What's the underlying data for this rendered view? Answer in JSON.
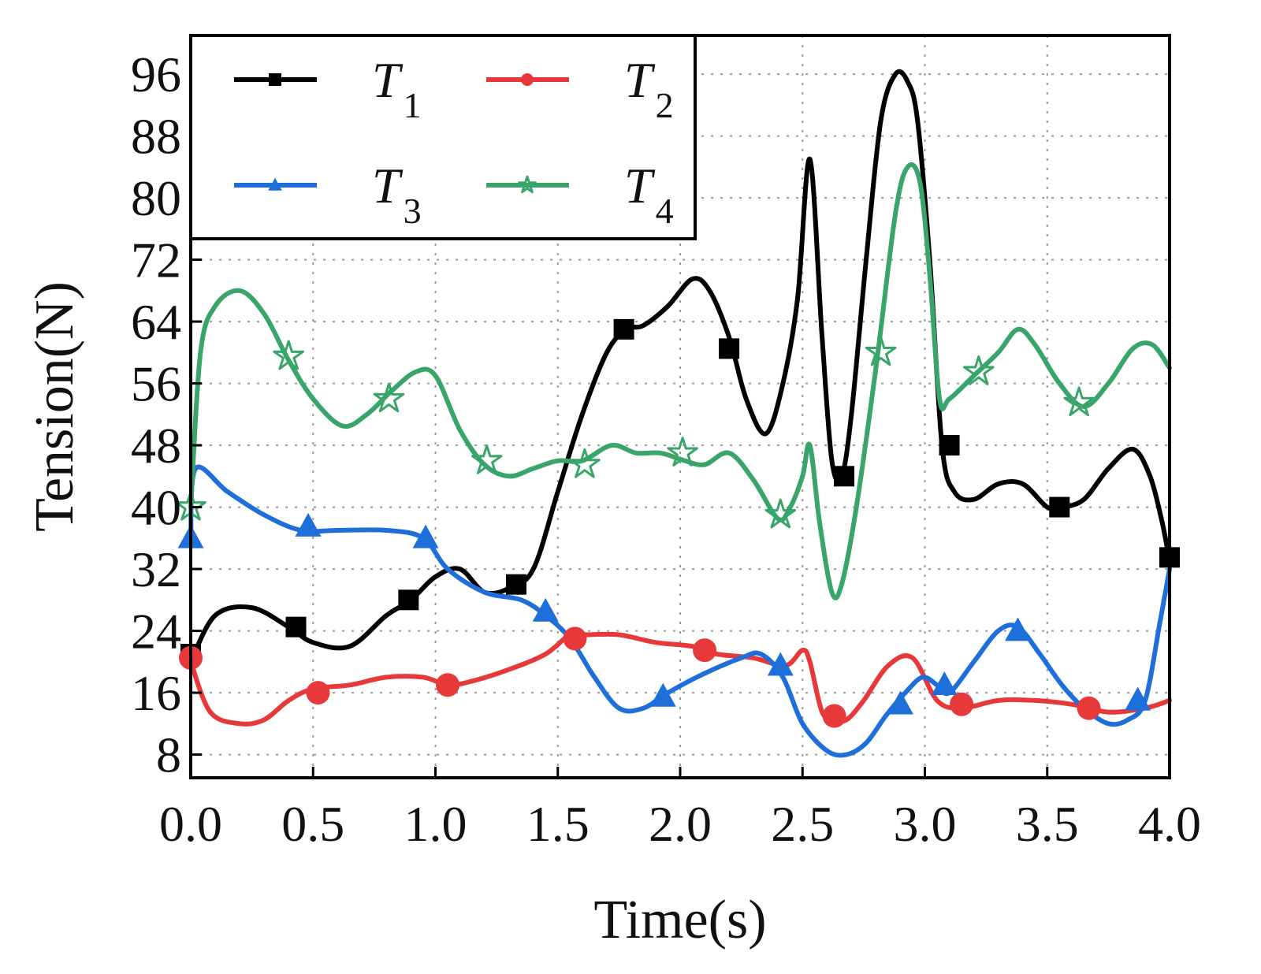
{
  "chart_data": {
    "type": "line",
    "title": "",
    "xlabel": "Time(s)",
    "ylabel": "Tension(N)",
    "xlim": [
      0.0,
      4.0
    ],
    "ylim": [
      5,
      101
    ],
    "xticks": [
      "0.0",
      "0.5",
      "1.0",
      "1.5",
      "2.0",
      "2.5",
      "3.0",
      "3.5",
      "4.0"
    ],
    "yticks": [
      "8",
      "16",
      "24",
      "32",
      "40",
      "48",
      "56",
      "64",
      "72",
      "80",
      "88",
      "96"
    ],
    "grid": true,
    "legend_position": "top-left",
    "series": [
      {
        "name": "T",
        "subscript": "1",
        "color": "#000000",
        "marker": "square",
        "x": [
          0.0,
          0.1,
          0.25,
          0.4,
          0.5,
          0.65,
          0.8,
          0.9,
          1.0,
          1.1,
          1.2,
          1.3,
          1.4,
          1.5,
          1.6,
          1.7,
          1.78,
          1.85,
          1.95,
          2.05,
          2.12,
          2.2,
          2.27,
          2.35,
          2.42,
          2.48,
          2.53,
          2.58,
          2.62,
          2.66,
          2.7,
          2.76,
          2.82,
          2.88,
          2.93,
          2.97,
          3.02,
          3.07,
          3.12,
          3.2,
          3.3,
          3.4,
          3.5,
          3.56,
          3.65,
          3.75,
          3.85,
          3.92,
          3.97,
          4.0
        ],
        "y": [
          20,
          26,
          27,
          24.5,
          22.5,
          22,
          26,
          28,
          31,
          32,
          29,
          29.5,
          32,
          42,
          52,
          60,
          63,
          63.5,
          66,
          69.5,
          68,
          62,
          54,
          49.5,
          56,
          67,
          85,
          62,
          46,
          44,
          52,
          72,
          90,
          96,
          95,
          90,
          72,
          48,
          42,
          41,
          43,
          43,
          40,
          40,
          41,
          45,
          47.5,
          44,
          38,
          33
        ],
        "marker_x": [
          0.0,
          0.43,
          0.89,
          1.33,
          1.77,
          2.2,
          2.67,
          3.1,
          3.55,
          4.0
        ],
        "marker_y": [
          21,
          24.5,
          28,
          30,
          63,
          60.5,
          44,
          48,
          40,
          33.5
        ]
      },
      {
        "name": "T",
        "subscript": "2",
        "color": "#e8393a",
        "marker": "circle",
        "x": [
          0.0,
          0.08,
          0.2,
          0.3,
          0.4,
          0.5,
          0.65,
          0.8,
          0.95,
          1.05,
          1.15,
          1.3,
          1.45,
          1.55,
          1.62,
          1.75,
          1.9,
          2.05,
          2.15,
          2.3,
          2.43,
          2.5,
          2.53,
          2.58,
          2.63,
          2.68,
          2.75,
          2.85,
          2.95,
          3.05,
          3.15,
          3.3,
          3.45,
          3.6,
          3.75,
          3.9,
          4.0
        ],
        "y": [
          20,
          13.5,
          12,
          12.5,
          15,
          16.5,
          17,
          18,
          18,
          17,
          17.5,
          19,
          21,
          23.5,
          23.5,
          23.5,
          22.5,
          22,
          21,
          20.5,
          19.5,
          21.5,
          20,
          13.5,
          12.5,
          12.5,
          15,
          19.5,
          20.5,
          15,
          14,
          15,
          15,
          14.5,
          13.5,
          14,
          15
        ],
        "marker_x": [
          0.0,
          0.52,
          1.05,
          1.57,
          2.1,
          2.63,
          3.15,
          3.67
        ],
        "marker_y": [
          20.5,
          16,
          17,
          23,
          21.5,
          13,
          14.5,
          14
        ]
      },
      {
        "name": "T",
        "subscript": "3",
        "color": "#1e6fd9",
        "marker": "triangle",
        "x": [
          0.0,
          0.02,
          0.15,
          0.3,
          0.45,
          0.6,
          0.8,
          0.95,
          1.05,
          1.2,
          1.35,
          1.45,
          1.55,
          1.65,
          1.75,
          1.85,
          1.95,
          2.1,
          2.25,
          2.33,
          2.42,
          2.5,
          2.6,
          2.68,
          2.76,
          2.84,
          2.92,
          2.99,
          3.05,
          3.1,
          3.2,
          3.3,
          3.38,
          3.47,
          3.56,
          3.65,
          3.75,
          3.83,
          3.9,
          3.96,
          4.0
        ],
        "y": [
          36,
          45,
          42,
          39,
          37,
          37,
          37,
          36,
          32,
          29,
          28,
          26,
          23,
          18,
          14,
          14,
          16,
          18.5,
          20.5,
          21,
          18,
          12,
          8.5,
          8,
          9.5,
          13,
          16,
          18,
          17,
          16,
          20,
          24,
          24.5,
          21,
          17,
          14,
          12,
          12.5,
          15,
          25,
          32
        ],
        "marker_x": [
          0.0,
          0.48,
          0.96,
          1.45,
          1.93,
          2.41,
          2.9,
          3.08,
          3.38,
          3.87
        ],
        "marker_y": [
          36,
          37.5,
          36,
          26.5,
          15.5,
          19.5,
          14.5,
          17,
          24,
          15
        ]
      },
      {
        "name": "T",
        "subscript": "4",
        "color": "#3aa56a",
        "marker": "star",
        "x": [
          0.0,
          0.04,
          0.1,
          0.2,
          0.3,
          0.4,
          0.5,
          0.62,
          0.72,
          0.82,
          0.92,
          1.0,
          1.1,
          1.2,
          1.3,
          1.4,
          1.5,
          1.6,
          1.72,
          1.82,
          1.92,
          2.02,
          2.1,
          2.2,
          2.3,
          2.4,
          2.45,
          2.5,
          2.53,
          2.57,
          2.62,
          2.66,
          2.72,
          2.8,
          2.88,
          2.93,
          2.98,
          3.02,
          3.06,
          3.1,
          3.2,
          3.3,
          3.38,
          3.45,
          3.55,
          3.65,
          3.75,
          3.85,
          3.93,
          4.0
        ],
        "y": [
          40,
          60,
          66,
          68,
          65,
          59,
          54,
          50.5,
          52,
          55,
          57.5,
          57,
          50,
          45.5,
          44,
          45,
          46,
          46,
          48,
          47,
          47,
          46,
          45.5,
          47,
          43.5,
          38.5,
          40,
          44,
          48,
          38,
          29,
          30,
          40,
          58,
          78,
          84,
          82,
          70,
          54,
          54,
          57,
          60,
          63,
          61,
          56,
          53,
          56,
          60.5,
          61,
          58
        ],
        "marker_x": [
          0.0,
          0.4,
          0.81,
          1.21,
          1.61,
          2.01,
          2.41,
          2.82,
          3.22,
          3.63
        ],
        "marker_y": [
          40,
          59.5,
          54,
          46,
          45.5,
          47,
          39,
          60,
          57.5,
          53.5
        ]
      }
    ]
  }
}
